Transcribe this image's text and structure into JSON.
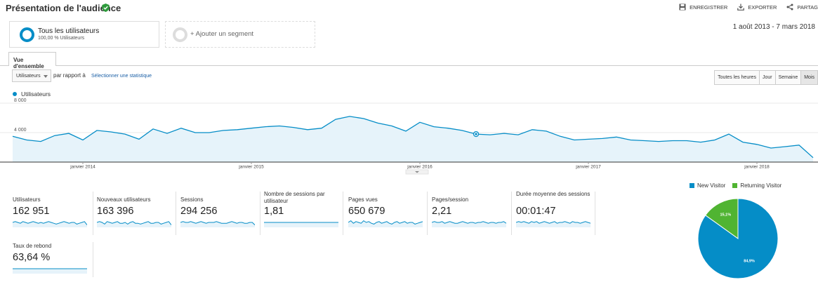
{
  "header": {
    "title": "Présentation de l'audience",
    "actions": [
      {
        "label": "ENREGISTRER",
        "icon": "save-icon"
      },
      {
        "label": "EXPORTER",
        "icon": "export-icon"
      },
      {
        "label": "PARTAG",
        "icon": "share-icon"
      }
    ]
  },
  "segments": {
    "primary": {
      "title": "Tous les utilisateurs",
      "subtitle": "100,00 % Utilisateurs"
    },
    "add_label": "+ Ajouter un segment"
  },
  "date_range": "1 août 2013 - 7 mars 2018",
  "tab": {
    "label": "Vue d'ensemble"
  },
  "controls": {
    "metric_select": "Utilisateurs",
    "vs_label": "par rapport à",
    "select_stat": "Sélectionner une statistique",
    "periods": [
      "Toutes les heures",
      "Jour",
      "Semaine",
      "Mois"
    ],
    "active_period": "Mois"
  },
  "colors": {
    "accent": "#058dc7",
    "returning": "#50b432"
  },
  "chart_data": {
    "type": "area",
    "series": [
      {
        "name": "Utilisateurs",
        "values": [
          3500,
          3000,
          2800,
          3600,
          3900,
          3000,
          4300,
          4100,
          3800,
          3100,
          4500,
          3900,
          4600,
          4000,
          4000,
          4300,
          4400,
          4600,
          4800,
          4900,
          4700,
          4400,
          4600,
          5800,
          6200,
          5900,
          5300,
          4900,
          4200,
          5400,
          4800,
          4600,
          4300,
          3800,
          3700,
          3900,
          3700,
          4400,
          4200,
          3500,
          3000,
          3100,
          3200,
          3400,
          3000,
          2900,
          2800,
          2900,
          2900,
          2700,
          3000,
          3800,
          2700,
          2400,
          1900,
          2100,
          2300,
          600
        ]
      }
    ],
    "x_ticks": [
      "janvier 2014",
      "janvier 2015",
      "janvier 2016",
      "janvier 2017",
      "janvier 2018"
    ],
    "y_ticks": [
      "4 000",
      "8 000"
    ],
    "ylim": [
      0,
      8000
    ],
    "highlighted_index": 33
  },
  "metrics": [
    {
      "label": "Utilisateurs",
      "value": "162 951"
    },
    {
      "label": "Nouveaux utilisateurs",
      "value": "163 396"
    },
    {
      "label": "Sessions",
      "value": "294 256"
    },
    {
      "label": "Nombre de sessions par utilisateur",
      "value": "1,81"
    },
    {
      "label": "Pages vues",
      "value": "650 679"
    },
    {
      "label": "Pages/session",
      "value": "2,21"
    },
    {
      "label": "Durée moyenne des sessions",
      "value": "00:01:47"
    },
    {
      "label": "Taux de rebond",
      "value": "63,64 %"
    }
  ],
  "pie": {
    "legend": [
      {
        "name": "New Visitor",
        "color": "#058dc7"
      },
      {
        "name": "Returning Visitor",
        "color": "#50b432"
      }
    ],
    "slices": [
      {
        "name": "New Visitor",
        "value": 84.9,
        "label": "84,9%"
      },
      {
        "name": "Returning Visitor",
        "value": 15.1,
        "label": "15,1%"
      }
    ]
  }
}
